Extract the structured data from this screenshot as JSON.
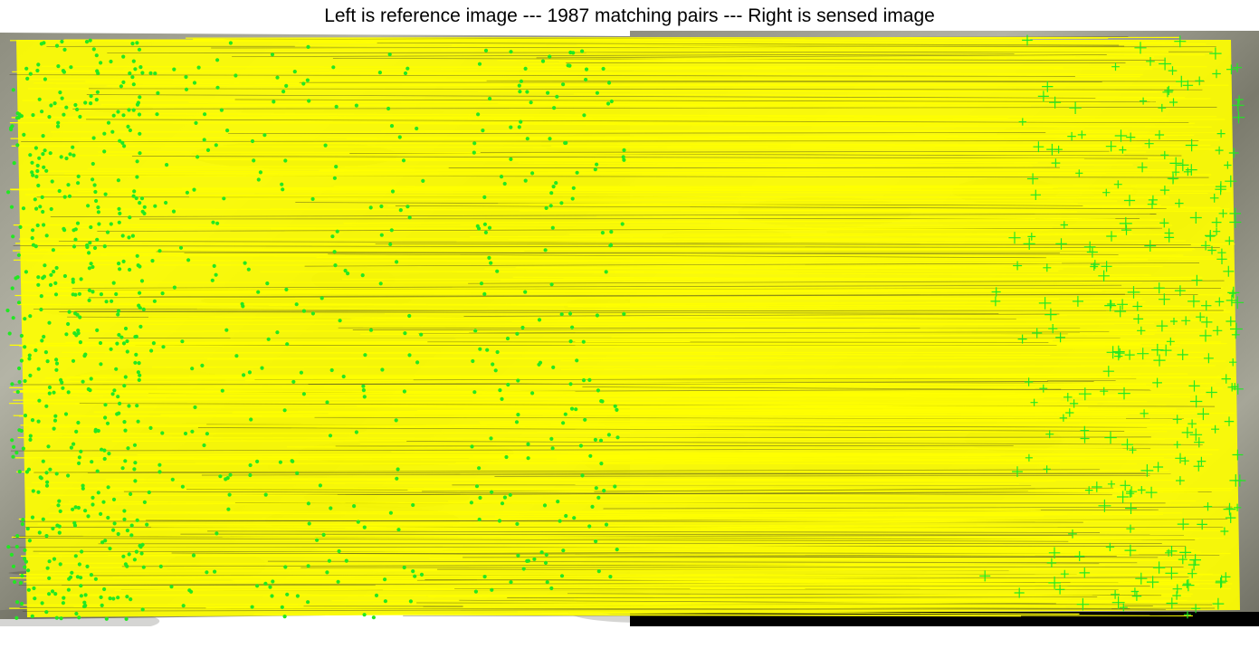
{
  "title": "Left is reference image --- 1987 matching pairs --- Right is sensed image",
  "colors": {
    "match_line": "#ffff00",
    "keypoint": "#22e822",
    "terrain_light": "#a8a89a",
    "terrain_dark": "#4a4a42",
    "background": "#ffffff",
    "mask": "#000000"
  },
  "icons": {
    "reference_marker": "dot",
    "sensed_marker": "plus"
  }
}
